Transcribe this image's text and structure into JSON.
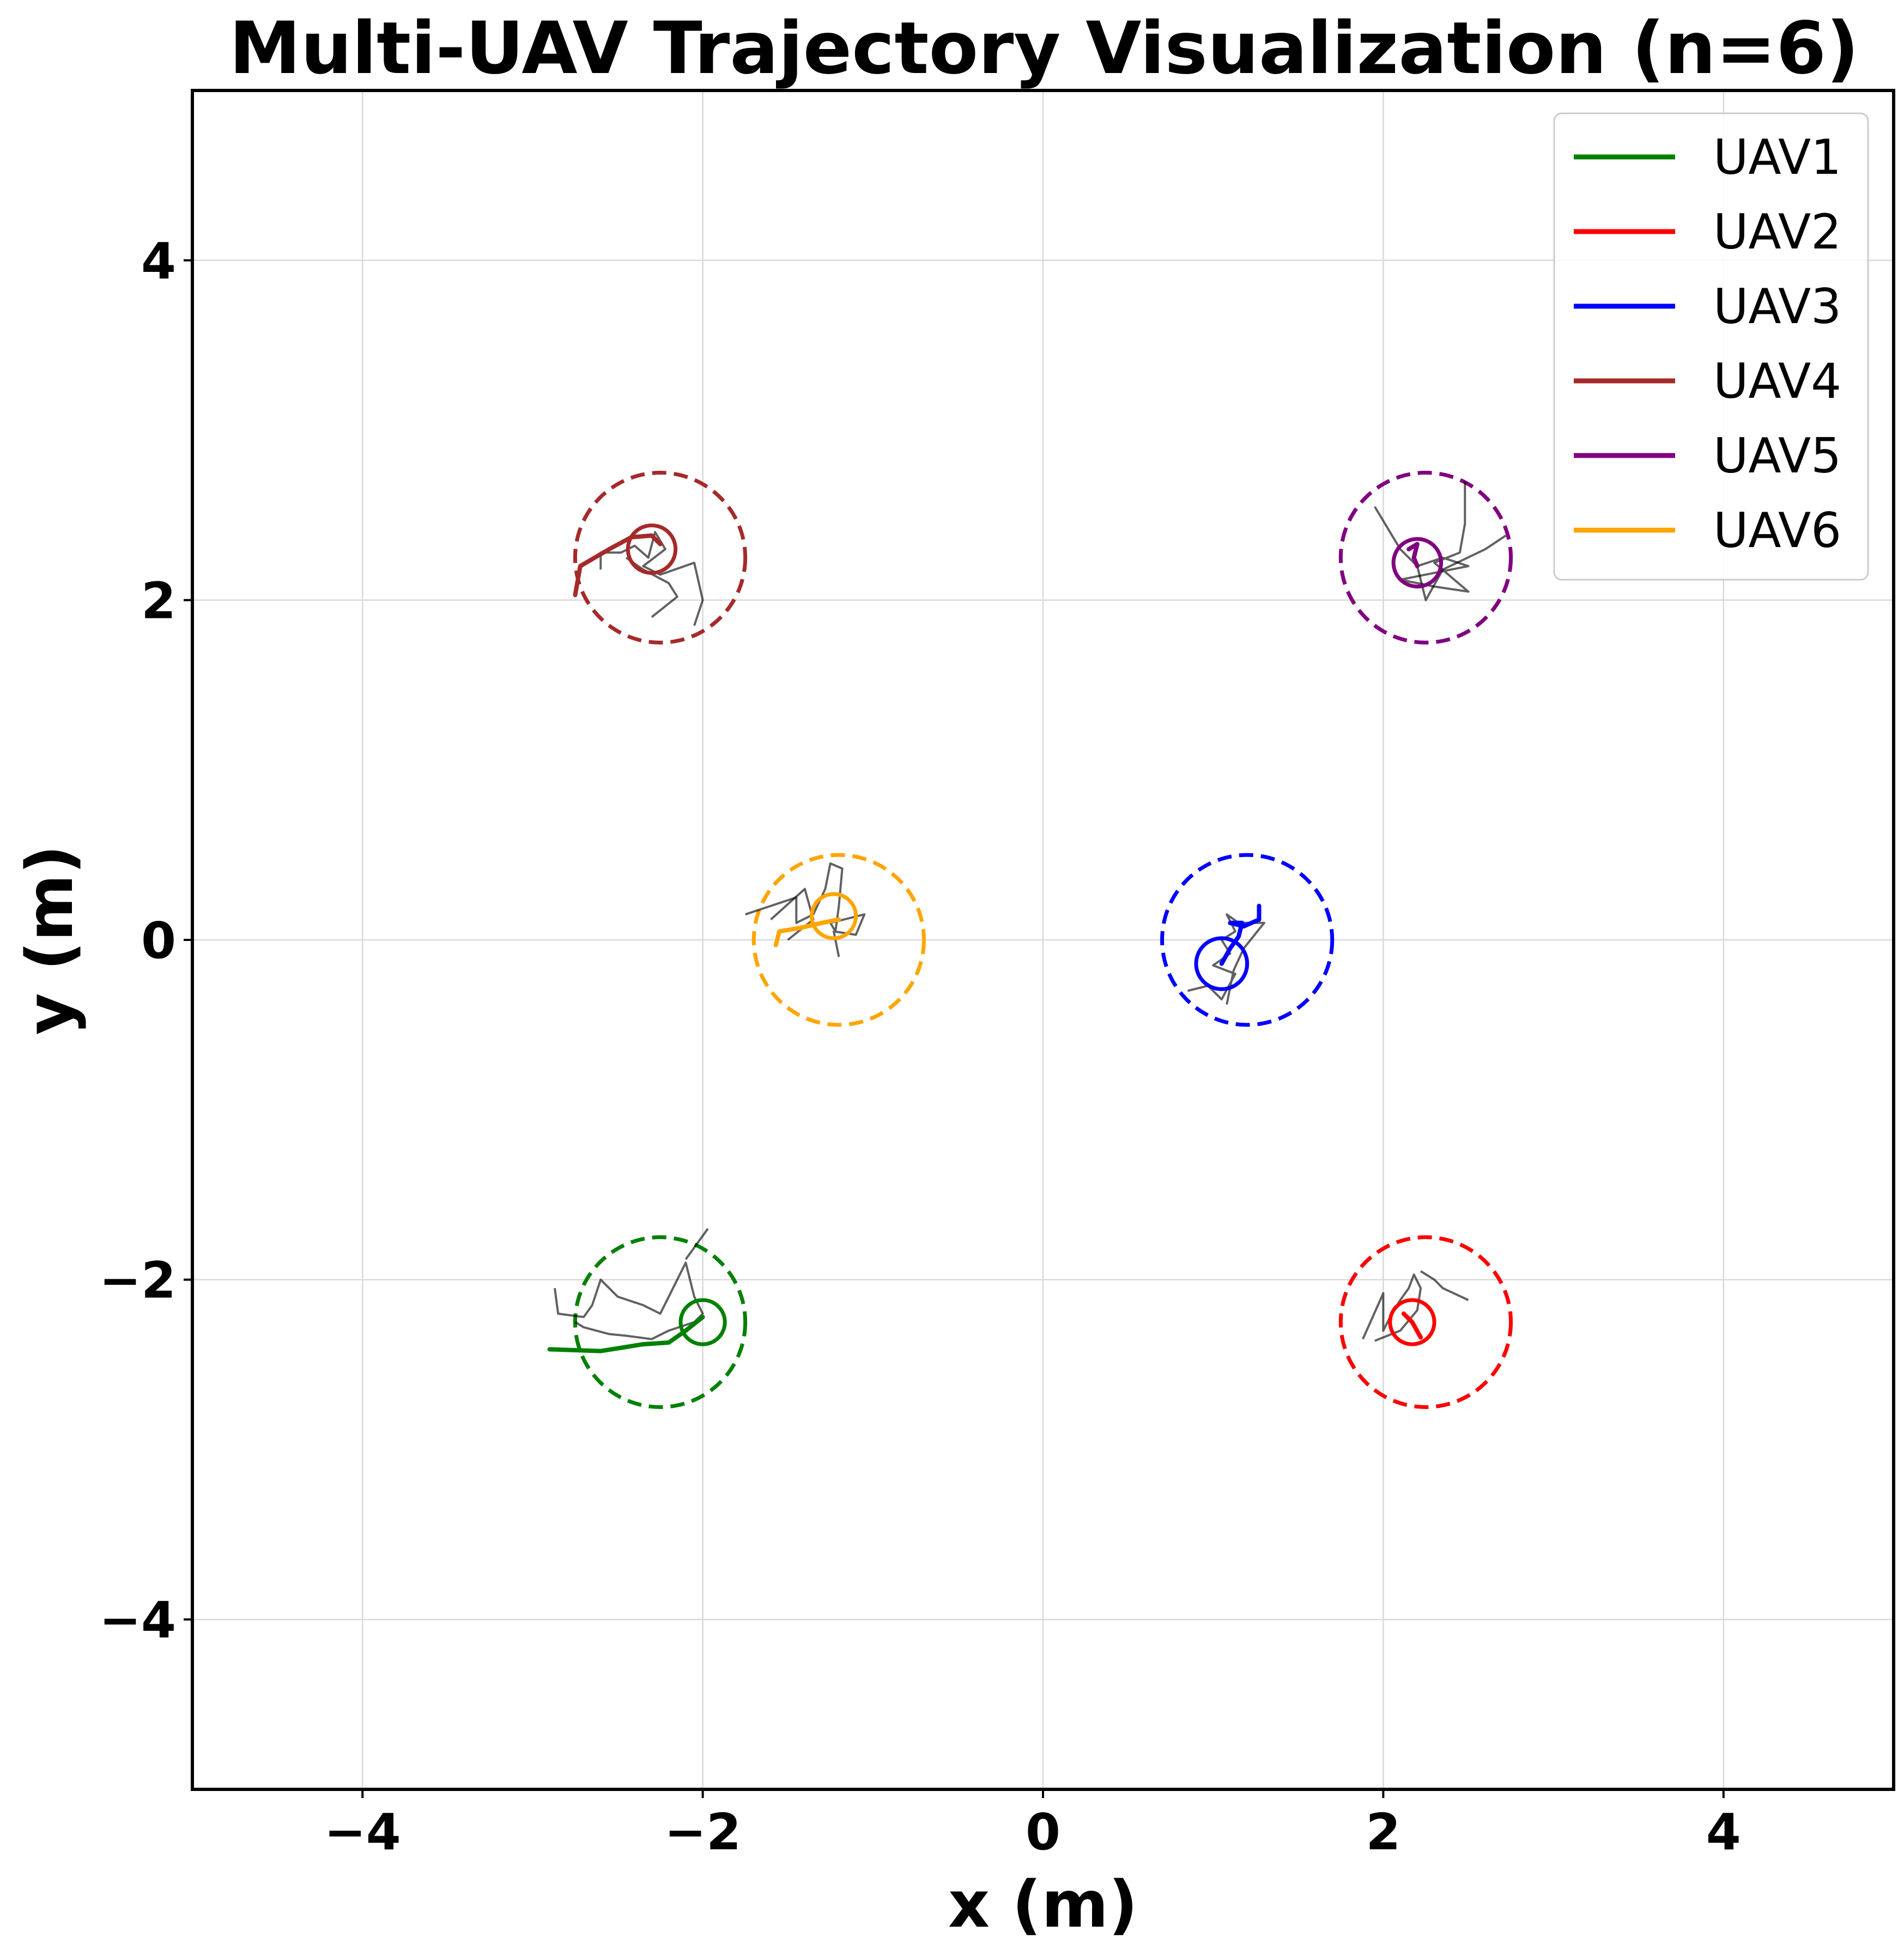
{
  "chart_data": {
    "type": "line",
    "title": "Multi-UAV Trajectory Visualization (n=6)",
    "xlabel": "x (m)",
    "ylabel": "y (m)",
    "xlim": [
      -5,
      5
    ],
    "ylim": [
      -5,
      5
    ],
    "xticks": [
      -4,
      -2,
      0,
      2,
      4
    ],
    "yticks": [
      -4,
      -2,
      0,
      2,
      4
    ],
    "xtick_labels": [
      "−4",
      "−2",
      "0",
      "2",
      "4"
    ],
    "ytick_labels": [
      "−4",
      "−2",
      "0",
      "2",
      "4"
    ],
    "grid": true,
    "legend_position": "top-right",
    "series": [
      {
        "name": "UAV1",
        "color": "#008000",
        "goal": [
          -2.25,
          -2.25
        ],
        "goal_radius": 0.5,
        "uav": [
          -2.0,
          -2.25
        ],
        "uav_radius": 0.13,
        "path": [
          [
            -2.9,
            -2.41
          ],
          [
            -2.6,
            -2.42
          ],
          [
            -2.35,
            -2.38
          ],
          [
            -2.2,
            -2.37
          ],
          [
            -2.1,
            -2.3
          ],
          [
            -2.0,
            -2.22
          ]
        ],
        "noise": [
          [
            -2.87,
            -2.05
          ],
          [
            -2.85,
            -2.2
          ],
          [
            -2.7,
            -2.22
          ],
          [
            -2.65,
            -2.15
          ],
          [
            -2.6,
            -2.0
          ],
          [
            -2.5,
            -2.1
          ],
          [
            -2.35,
            -2.15
          ],
          [
            -2.25,
            -2.2
          ],
          [
            -2.2,
            -2.1
          ],
          [
            -2.1,
            -1.9
          ],
          [
            -2.05,
            -2.1
          ],
          [
            -2.0,
            -2.2
          ],
          [
            -2.05,
            -2.25
          ],
          [
            -2.2,
            -2.3
          ],
          [
            -2.3,
            -2.35
          ],
          [
            -2.45,
            -2.33
          ],
          [
            -2.55,
            -2.32
          ],
          [
            -2.7,
            -2.28
          ],
          [
            -2.75,
            -2.25
          ]
        ],
        "noise2": [
          [
            -2.1,
            -1.88
          ],
          [
            -1.97,
            -1.7
          ]
        ]
      },
      {
        "name": "UAV2",
        "color": "#ff0000",
        "goal": [
          2.25,
          -2.25
        ],
        "goal_radius": 0.5,
        "uav": [
          2.17,
          -2.25
        ],
        "uav_radius": 0.13,
        "path": [
          [
            2.12,
            -2.2
          ],
          [
            2.17,
            -2.25
          ],
          [
            2.22,
            -2.34
          ]
        ],
        "noise": [
          [
            1.88,
            -2.35
          ],
          [
            2.0,
            -2.08
          ],
          [
            2.0,
            -2.3
          ],
          [
            2.05,
            -2.2
          ],
          [
            2.1,
            -2.12
          ],
          [
            2.15,
            -2.05
          ],
          [
            2.18,
            -1.97
          ],
          [
            2.22,
            -2.05
          ],
          [
            2.2,
            -2.18
          ],
          [
            2.1,
            -2.3
          ],
          [
            1.95,
            -2.36
          ]
        ],
        "noise2": [
          [
            2.22,
            -1.95
          ],
          [
            2.3,
            -2.0
          ],
          [
            2.35,
            -2.05
          ],
          [
            2.5,
            -2.12
          ]
        ]
      },
      {
        "name": "UAV3",
        "color": "#0000ff",
        "goal": [
          1.2,
          0.0
        ],
        "goal_radius": 0.5,
        "uav": [
          1.05,
          -0.14
        ],
        "uav_radius": 0.15,
        "path": [
          [
            1.05,
            -0.14
          ],
          [
            1.1,
            -0.05
          ],
          [
            1.15,
            0.02
          ],
          [
            1.17,
            0.1
          ],
          [
            1.1,
            0.1
          ],
          [
            1.18,
            0.08
          ],
          [
            1.27,
            0.12
          ],
          [
            1.27,
            0.2
          ]
        ],
        "noise": [
          [
            0.85,
            -0.3
          ],
          [
            0.97,
            -0.27
          ],
          [
            1.05,
            -0.35
          ],
          [
            1.13,
            -0.2
          ],
          [
            1.0,
            -0.15
          ],
          [
            1.1,
            -0.08
          ],
          [
            1.05,
            0.0
          ],
          [
            1.13,
            0.05
          ],
          [
            1.08,
            0.15
          ],
          [
            1.15,
            0.1
          ],
          [
            1.3,
            0.1
          ],
          [
            1.18,
            -0.05
          ],
          [
            1.12,
            -0.18
          ],
          [
            1.08,
            -0.38
          ]
        ]
      },
      {
        "name": "UAV4",
        "color": "#a52a2a",
        "goal": [
          -2.25,
          2.25
        ],
        "goal_radius": 0.5,
        "uav": [
          -2.3,
          2.3
        ],
        "uav_radius": 0.14,
        "path": [
          [
            -2.75,
            2.03
          ],
          [
            -2.72,
            2.2
          ],
          [
            -2.55,
            2.3
          ],
          [
            -2.42,
            2.37
          ],
          [
            -2.3,
            2.38
          ],
          [
            -2.25,
            2.33
          ]
        ],
        "noise": [
          [
            -2.6,
            2.18
          ],
          [
            -2.6,
            2.28
          ],
          [
            -2.48,
            2.28
          ],
          [
            -2.4,
            2.32
          ],
          [
            -2.32,
            2.25
          ],
          [
            -2.28,
            2.4
          ],
          [
            -2.22,
            2.3
          ],
          [
            -2.35,
            2.2
          ],
          [
            -2.25,
            2.15
          ],
          [
            -2.05,
            2.22
          ],
          [
            -2.0,
            2.0
          ],
          [
            -2.05,
            1.85
          ]
        ],
        "noise2": [
          [
            -2.45,
            2.25
          ],
          [
            -2.35,
            2.18
          ],
          [
            -2.2,
            2.1
          ],
          [
            -2.15,
            2.02
          ],
          [
            -2.3,
            1.9
          ]
        ]
      },
      {
        "name": "UAV5",
        "color": "#800080",
        "goal": [
          2.25,
          2.25
        ],
        "goal_radius": 0.5,
        "uav": [
          2.2,
          2.22
        ],
        "uav_radius": 0.14,
        "path": [
          [
            2.15,
            2.3
          ],
          [
            2.2,
            2.33
          ],
          [
            2.18,
            2.25
          ],
          [
            2.2,
            2.2
          ]
        ],
        "noise": [
          [
            1.95,
            2.55
          ],
          [
            2.1,
            2.3
          ],
          [
            2.2,
            2.2
          ],
          [
            2.35,
            2.25
          ],
          [
            2.5,
            2.2
          ],
          [
            2.25,
            2.15
          ],
          [
            2.1,
            2.12
          ],
          [
            2.3,
            2.08
          ],
          [
            2.5,
            2.05
          ],
          [
            2.3,
            2.22
          ],
          [
            2.45,
            2.28
          ],
          [
            2.48,
            2.45
          ],
          [
            2.48,
            2.7
          ]
        ],
        "noise2": [
          [
            2.2,
            2.2
          ],
          [
            2.25,
            2.0
          ],
          [
            2.35,
            2.18
          ],
          [
            2.6,
            2.3
          ],
          [
            2.72,
            2.38
          ]
        ]
      },
      {
        "name": "UAV6",
        "color": "#ffa500",
        "goal": [
          -1.2,
          0.0
        ],
        "goal_radius": 0.5,
        "uav": [
          -1.23,
          0.14
        ],
        "uav_radius": 0.13,
        "path": [
          [
            -1.57,
            -0.03
          ],
          [
            -1.55,
            0.05
          ],
          [
            -1.43,
            0.07
          ],
          [
            -1.3,
            0.1
          ],
          [
            -1.2,
            0.12
          ]
        ],
        "noise": [
          [
            -1.75,
            0.15
          ],
          [
            -1.6,
            0.2
          ],
          [
            -1.45,
            0.25
          ],
          [
            -1.45,
            0.1
          ],
          [
            -1.35,
            0.15
          ],
          [
            -1.28,
            0.3
          ],
          [
            -1.25,
            0.45
          ],
          [
            -1.18,
            0.42
          ],
          [
            -1.2,
            0.2
          ],
          [
            -1.22,
            0.05
          ],
          [
            -1.25,
            0.1
          ],
          [
            -1.05,
            0.15
          ],
          [
            -1.1,
            0.03
          ],
          [
            -1.23,
            0.05
          ],
          [
            -1.2,
            -0.1
          ]
        ],
        "noise2": [
          [
            -1.6,
            0.12
          ],
          [
            -1.4,
            0.3
          ],
          [
            -1.35,
            0.12
          ],
          [
            -1.5,
            0.0
          ]
        ]
      }
    ]
  }
}
